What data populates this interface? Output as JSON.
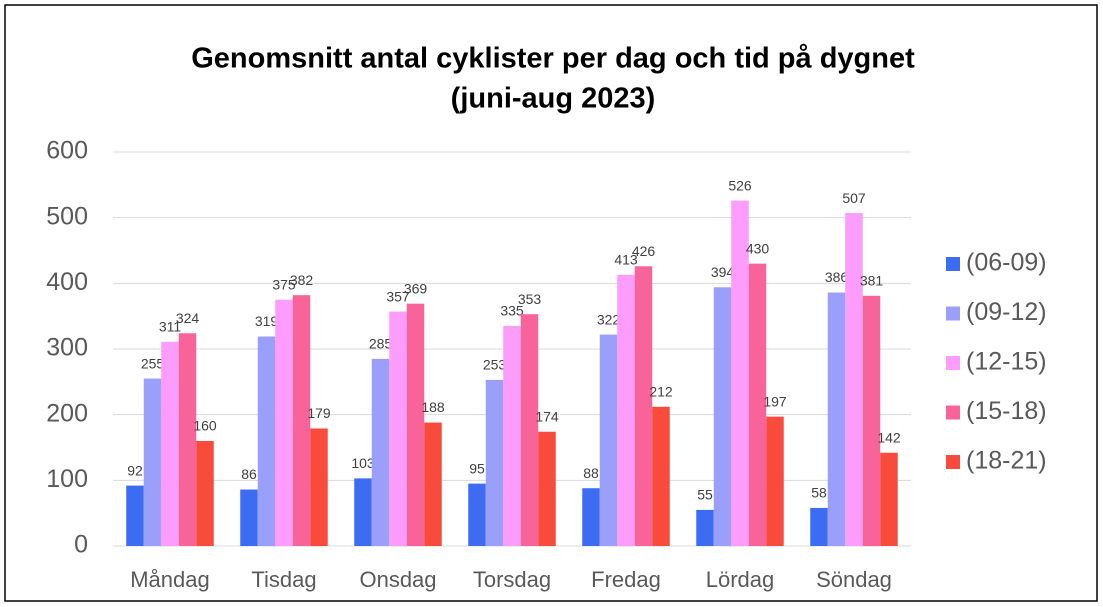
{
  "chart_data": {
    "type": "bar",
    "title": [
      "Genomsnitt antal cyklister per dag och tid på dygnet",
      "(juni-aug 2023)"
    ],
    "categories": [
      "Måndag",
      "Tisdag",
      "Onsdag",
      "Torsdag",
      "Fredag",
      "Lördag",
      "Söndag"
    ],
    "series": [
      {
        "name": "(06-09)",
        "color": "#3c6cf2",
        "values": [
          92,
          86,
          103,
          95,
          88,
          55,
          58
        ]
      },
      {
        "name": "(09-12)",
        "color": "#9a9ffa",
        "values": [
          255,
          319,
          285,
          253,
          322,
          394,
          386
        ]
      },
      {
        "name": "(12-15)",
        "color": "#fc9cfc",
        "values": [
          311,
          375,
          357,
          335,
          413,
          526,
          507
        ]
      },
      {
        "name": "(15-18)",
        "color": "#f8649a",
        "values": [
          324,
          382,
          369,
          353,
          426,
          430,
          381
        ]
      },
      {
        "name": "(18-21)",
        "color": "#f94b3c",
        "values": [
          160,
          179,
          188,
          174,
          212,
          197,
          142
        ]
      }
    ],
    "ylim": [
      0,
      600
    ],
    "yticks": [
      0,
      100,
      200,
      300,
      400,
      500,
      600
    ],
    "grid": true,
    "legend": "right"
  }
}
